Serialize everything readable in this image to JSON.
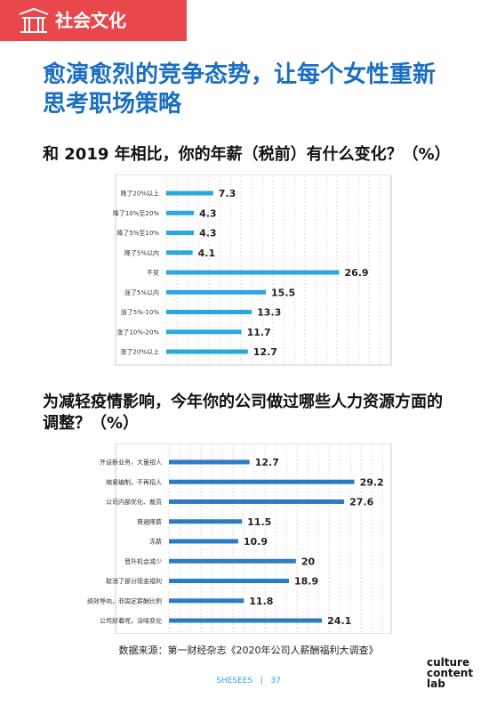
{
  "page": {
    "section": "社会文化",
    "headline": "愈演愈烈的竞争态势，让每个女性重新思考职场策略",
    "source": "数据来源：第一财经杂志《2020年公司人薪酬福利大调查》",
    "footer_brand": "SHESEES",
    "footer_page": "37",
    "logo": [
      "culture",
      "content",
      "lab"
    ]
  },
  "chart_data": [
    {
      "type": "bar",
      "orientation": "horizontal",
      "title": "和 2019 年相比，你的年薪（税前）有什么变化？（%）",
      "categories": [
        "降了20%以上",
        "降了10%至20%",
        "降了5%至10%",
        "降了5%以内",
        "不变",
        "涨了5%以内",
        "涨了5%-10%",
        "涨了10%-20%",
        "涨了20%以上"
      ],
      "values": [
        7.3,
        4.3,
        4.3,
        4.1,
        26.9,
        15.5,
        13.3,
        11.7,
        12.7
      ],
      "color": "#2aa7df",
      "xlim": [
        0,
        35
      ],
      "grid": true
    },
    {
      "type": "bar",
      "orientation": "horizontal",
      "title": "为减轻疫情影响，今年你的公司做过哪些人力资源方面的调整？（%）",
      "categories": [
        "开设新业务，大量招人",
        "缩紧编制，不再招人",
        "公司内部优化、裁员",
        "普遍降薪",
        "冻薪",
        "晋升机会减少",
        "取消了部分现金福利",
        "绩效导向，非固定薪酬比例",
        "公司好着呢，没啥变化"
      ],
      "values": [
        12.7,
        29.2,
        27.6,
        11.5,
        10.9,
        20.0,
        18.9,
        11.8,
        24.1
      ],
      "color": "#2c7cc3",
      "xlim": [
        0,
        35
      ],
      "grid": true
    }
  ]
}
